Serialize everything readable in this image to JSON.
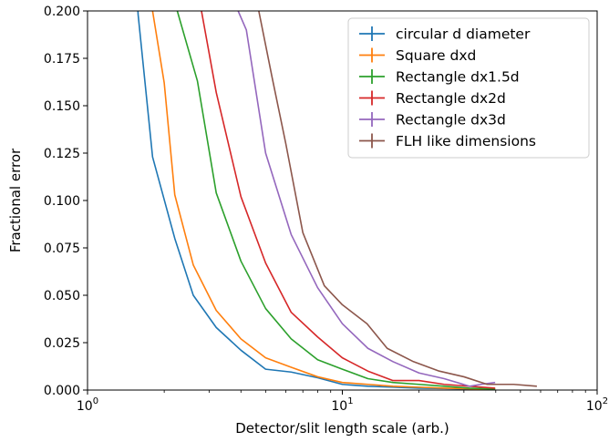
{
  "chart_data": {
    "type": "line",
    "xscale": "log",
    "xlim": [
      1,
      100
    ],
    "ylim": [
      0,
      0.2
    ],
    "xlabel": "Detector/slit length scale (arb.)",
    "ylabel": "Fractional error",
    "x_ticks": [
      {
        "value": 1,
        "label_base": "10",
        "label_exp": "0"
      },
      {
        "value": 10,
        "label_base": "10",
        "label_exp": "1"
      },
      {
        "value": 100,
        "label_base": "10",
        "label_exp": "2"
      }
    ],
    "y_ticks": [
      0,
      0.025,
      0.05,
      0.075,
      0.1,
      0.125,
      0.15,
      0.175,
      0.2
    ],
    "y_tick_labels": [
      "0.000",
      "0.025",
      "0.050",
      "0.075",
      "0.100",
      "0.125",
      "0.150",
      "0.175",
      "0.200"
    ],
    "grid": false,
    "legend_position": "top-right",
    "series": [
      {
        "name": "circular d diameter",
        "color": "#1f77b4",
        "x": [
          1.5,
          1.58,
          1.8,
          2.2,
          2.6,
          3.2,
          4.0,
          5.0,
          6.3,
          8.0,
          10.0,
          12.6,
          15.8,
          20.0,
          25.1,
          31.6,
          39.8
        ],
        "y": [
          0.25,
          0.198,
          0.123,
          0.08,
          0.05,
          0.033,
          0.021,
          0.011,
          0.0095,
          0.0065,
          0.003,
          0.002,
          0.0015,
          0.001,
          0.0008,
          0.0005,
          0.0003
        ]
      },
      {
        "name": "Square dxd",
        "color": "#ff7f0e",
        "x": [
          1.7,
          1.8,
          2.0,
          2.2,
          2.6,
          3.2,
          4.0,
          5.0,
          6.3,
          8.0,
          10.0,
          12.6,
          15.8,
          20.0,
          25.1,
          31.6,
          39.8
        ],
        "y": [
          0.25,
          0.2,
          0.162,
          0.103,
          0.066,
          0.042,
          0.027,
          0.017,
          0.012,
          0.007,
          0.004,
          0.003,
          0.002,
          0.0015,
          0.001,
          0.0007,
          0.0005
        ]
      },
      {
        "name": "Rectangle dx1.5d",
        "color": "#2ca02c",
        "x": [
          2.1,
          2.25,
          2.7,
          3.2,
          4.0,
          5.0,
          6.3,
          8.0,
          10.0,
          12.6,
          15.8,
          20.0,
          25.1,
          31.6,
          39.8
        ],
        "y": [
          0.25,
          0.2,
          0.163,
          0.104,
          0.068,
          0.043,
          0.027,
          0.016,
          0.011,
          0.006,
          0.004,
          0.003,
          0.002,
          0.001,
          0.0005
        ]
      },
      {
        "name": "Rectangle dx2d",
        "color": "#d62728",
        "x": [
          2.6,
          2.8,
          3.2,
          4.0,
          5.0,
          6.3,
          8.0,
          10.0,
          12.6,
          15.8,
          20.0,
          25.1,
          31.6,
          39.8
        ],
        "y": [
          0.25,
          0.2,
          0.157,
          0.102,
          0.067,
          0.041,
          0.028,
          0.017,
          0.01,
          0.005,
          0.005,
          0.003,
          0.002,
          0.001
        ]
      },
      {
        "name": "Rectangle dx3d",
        "color": "#9467bd",
        "x": [
          3.7,
          3.9,
          4.2,
          5.0,
          6.3,
          8.0,
          10.0,
          12.6,
          15.8,
          20.0,
          25.1,
          31.6,
          35.0,
          39.8
        ],
        "y": [
          0.25,
          0.2,
          0.19,
          0.125,
          0.082,
          0.054,
          0.035,
          0.022,
          0.015,
          0.009,
          0.006,
          0.002,
          0.003,
          0.004
        ]
      },
      {
        "name": "FLH like dimensions",
        "color": "#8c564b",
        "x": [
          4.5,
          4.7,
          5.3,
          6.0,
          7.0,
          8.5,
          10.0,
          12.5,
          15.0,
          19.0,
          24.0,
          30.0,
          37.0,
          47.0,
          58.0
        ],
        "y": [
          0.25,
          0.2,
          0.165,
          0.13,
          0.083,
          0.055,
          0.045,
          0.035,
          0.022,
          0.015,
          0.01,
          0.007,
          0.003,
          0.003,
          0.002
        ]
      }
    ]
  }
}
